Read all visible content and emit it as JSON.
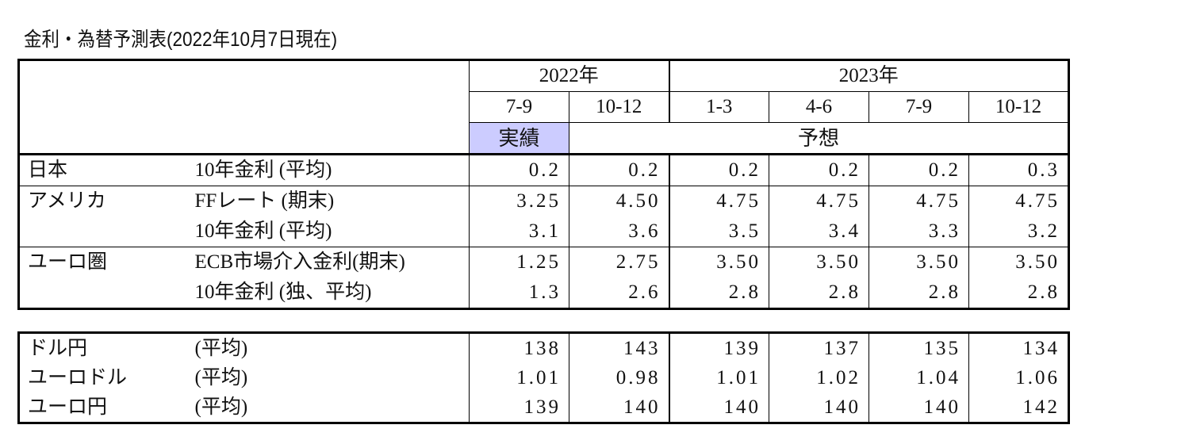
{
  "title": "金利・為替予測表(2022年10月7日現在)",
  "header": {
    "years": [
      "2022年",
      "2023年"
    ],
    "periods": [
      "7-9",
      "10-12",
      "1-3",
      "4-6",
      "7-9",
      "10-12"
    ],
    "actual_label": "実績",
    "forecast_label": "予想",
    "actual_color": "#ccccff"
  },
  "rates": [
    {
      "country": "日本",
      "item": "10年金利 (平均)",
      "values": [
        "0.2",
        "0.2",
        "0.2",
        "0.2",
        "0.2",
        "0.3"
      ]
    },
    {
      "country": "アメリカ",
      "item": "FFレート (期末)",
      "values": [
        "3.25",
        "4.50",
        "4.75",
        "4.75",
        "4.75",
        "4.75"
      ]
    },
    {
      "country": "",
      "item": "10年金利 (平均)",
      "values": [
        "3.1",
        "3.6",
        "3.5",
        "3.4",
        "3.3",
        "3.2"
      ]
    },
    {
      "country": "ユーロ圏",
      "item": "ECB市場介入金利(期末)",
      "values": [
        "1.25",
        "2.75",
        "3.50",
        "3.50",
        "3.50",
        "3.50"
      ]
    },
    {
      "country": "",
      "item": "10年金利 (独、平均)",
      "values": [
        "1.3",
        "2.6",
        "2.8",
        "2.8",
        "2.8",
        "2.8"
      ]
    }
  ],
  "fx": [
    {
      "pair": "ドル円",
      "item": "(平均)",
      "values": [
        "138",
        "143",
        "139",
        "137",
        "135",
        "134"
      ]
    },
    {
      "pair": "ユーロドル",
      "item": "(平均)",
      "values": [
        "1.01",
        "0.98",
        "1.01",
        "1.02",
        "1.04",
        "1.06"
      ]
    },
    {
      "pair": "ユーロ円",
      "item": "(平均)",
      "values": [
        "139",
        "140",
        "140",
        "140",
        "140",
        "142"
      ]
    }
  ]
}
